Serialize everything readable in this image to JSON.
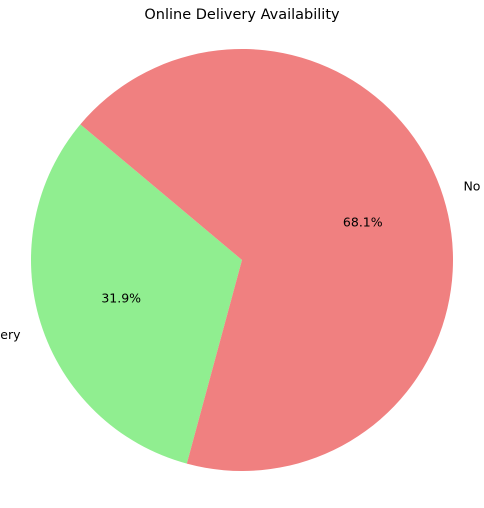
{
  "chart_data": {
    "type": "pie",
    "title": "Online Delivery Availability",
    "slices": [
      {
        "label": "Online Delivery",
        "value": 31.9,
        "pct_label": "31.9%",
        "color": "#90ee90"
      },
      {
        "label": "No Online Delivery",
        "value": 68.1,
        "pct_label": "68.1%",
        "color": "#f08080"
      }
    ],
    "start_angle_deg": 140,
    "direction": "counterclockwise"
  }
}
